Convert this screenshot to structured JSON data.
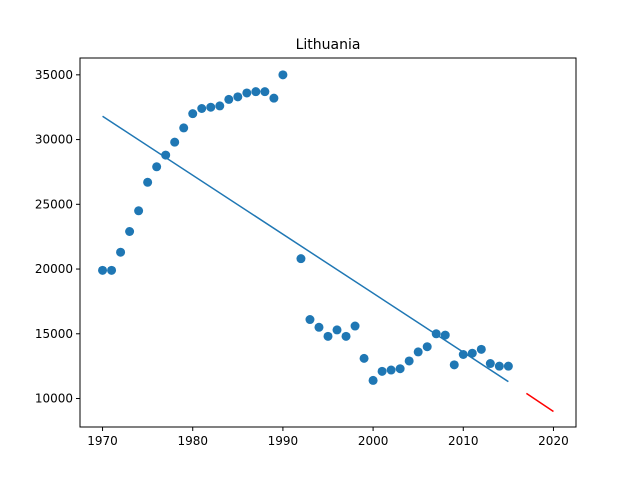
{
  "chart_data": {
    "type": "scatter",
    "title": "Lithuania",
    "xlabel": "",
    "ylabel": "",
    "xlim": [
      1967.5,
      2022.5
    ],
    "ylim": [
      7800,
      36300
    ],
    "x_ticks": [
      1970,
      1980,
      1990,
      2000,
      2010,
      2020
    ],
    "y_ticks": [
      10000,
      15000,
      20000,
      25000,
      30000,
      35000
    ],
    "grid": false,
    "colors": {
      "points": "#1f77b4",
      "fit_line": "#1f77b4",
      "forecast_line": "#ff0000"
    },
    "series": [
      {
        "kind": "scatter",
        "x": [
          1970,
          1971,
          1972,
          1973,
          1974,
          1975,
          1976,
          1977,
          1978,
          1979,
          1980,
          1981,
          1982,
          1983,
          1984,
          1985,
          1986,
          1987,
          1988,
          1989,
          1990,
          1992,
          1993,
          1994,
          1995,
          1996,
          1997,
          1998,
          1999,
          2000,
          2001,
          2002,
          2003,
          2004,
          2005,
          2006,
          2007,
          2008,
          2009,
          2010,
          2011,
          2012,
          2013,
          2014,
          2015
        ],
        "y": [
          19900,
          19900,
          21300,
          22900,
          24500,
          26700,
          27900,
          28800,
          29800,
          30900,
          32000,
          32400,
          32500,
          32600,
          33100,
          33300,
          33600,
          33700,
          33700,
          33200,
          35000,
          20800,
          16100,
          15500,
          14800,
          15300,
          14800,
          15600,
          13100,
          11400,
          12100,
          12200,
          12300,
          12900,
          13600,
          14000,
          15000,
          14900,
          12600,
          13400,
          13500,
          13800,
          12700,
          12500,
          12500
        ]
      },
      {
        "kind": "line",
        "x": [
          1970,
          2015
        ],
        "y": [
          31800,
          11300
        ]
      },
      {
        "kind": "line",
        "x": [
          2017,
          2020
        ],
        "y": [
          10400,
          9000
        ]
      }
    ]
  }
}
